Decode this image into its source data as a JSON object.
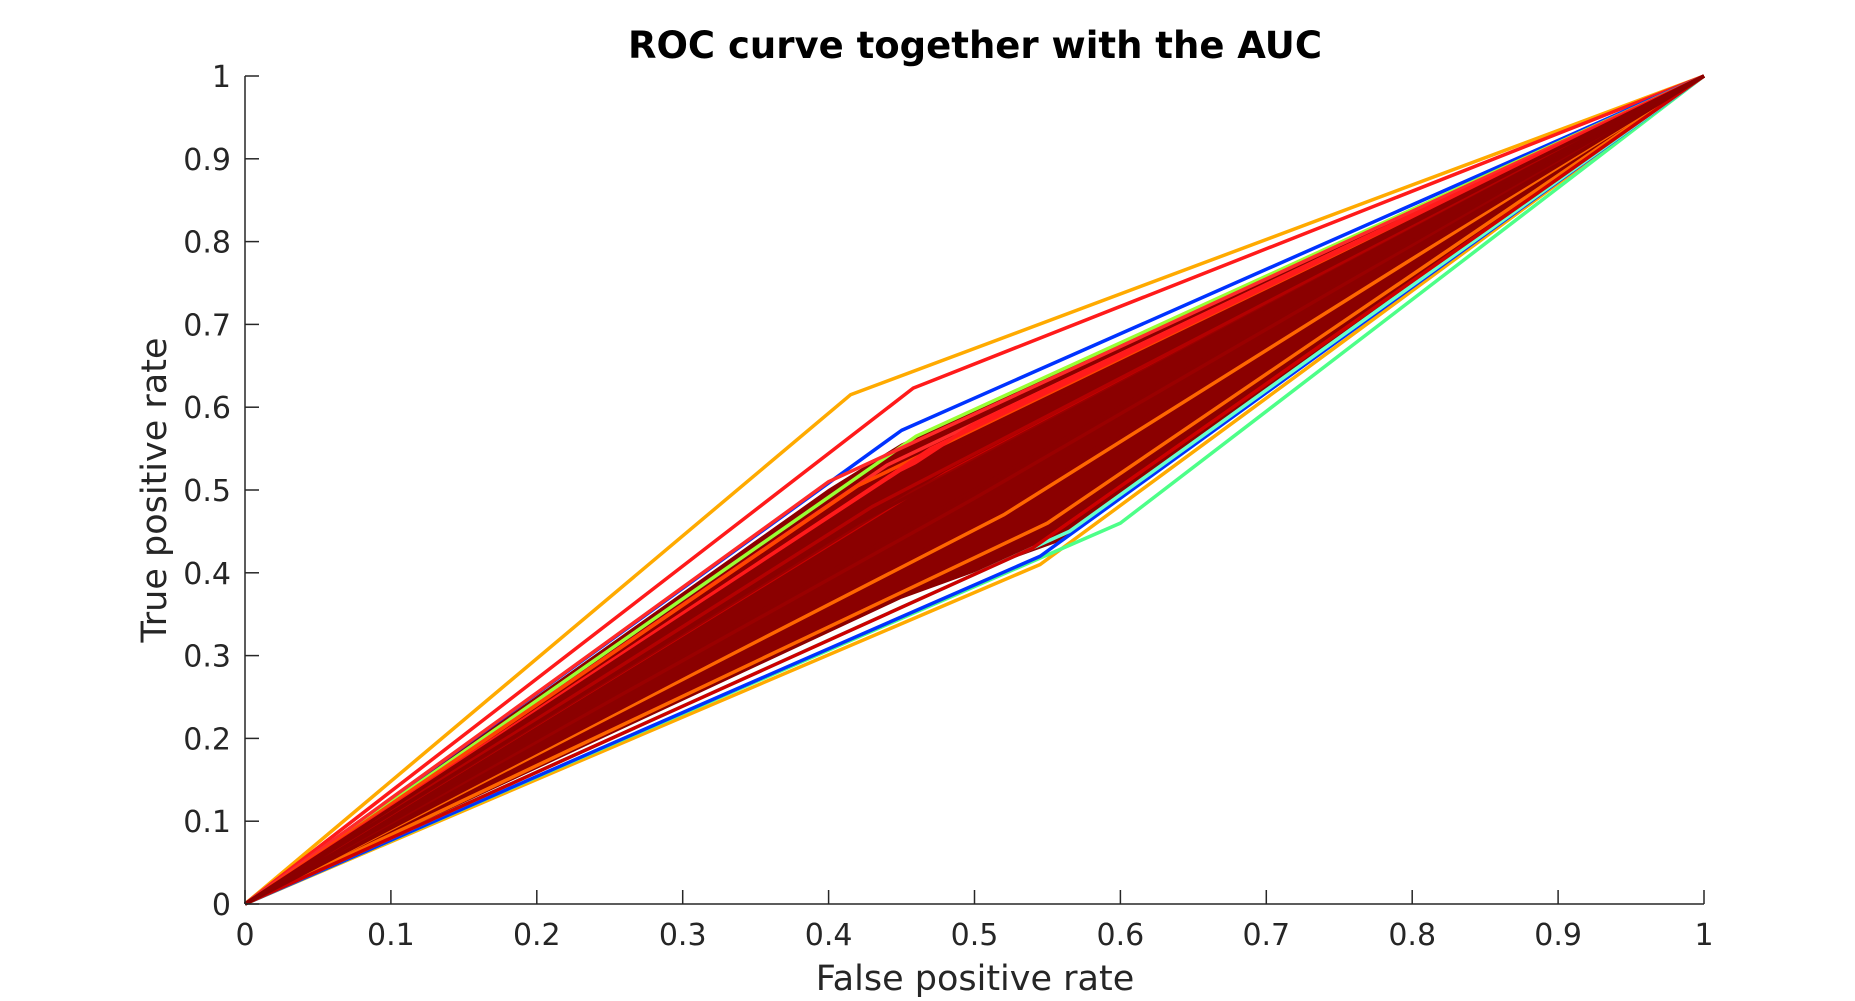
{
  "chart_data": {
    "type": "line",
    "title": "ROC curve together with the AUC",
    "xlabel": "False positive rate",
    "ylabel": "True positive rate",
    "xlim": [
      0,
      1
    ],
    "ylim": [
      0,
      1
    ],
    "grid": false,
    "legend": "none",
    "x_ticks": [
      "0",
      "0.1",
      "0.2",
      "0.3",
      "0.4",
      "0.5",
      "0.6",
      "0.7",
      "0.8",
      "0.9",
      "1"
    ],
    "y_ticks": [
      "0",
      "0.1",
      "0.2",
      "0.3",
      "0.4",
      "0.5",
      "0.6",
      "0.7",
      "0.8",
      "0.9",
      "1"
    ],
    "colors": {
      "dominant": "#8B0000",
      "accents": [
        "#FFAA00",
        "#FF1A1A",
        "#0033FF",
        "#99FF33",
        "#4DFF88",
        "#FF6600",
        "#CC0000"
      ]
    },
    "series": [
      {
        "color": "#FFAA00",
        "x": [
          0,
          0.415,
          1
        ],
        "y": [
          0,
          0.615,
          1
        ]
      },
      {
        "color": "#FF1A1A",
        "x": [
          0,
          0.458,
          1
        ],
        "y": [
          0,
          0.623,
          1
        ]
      },
      {
        "color": "#0033FF",
        "x": [
          0,
          0.45,
          1
        ],
        "y": [
          0,
          0.572,
          1
        ]
      },
      {
        "color": "#99FF33",
        "x": [
          0,
          0.46,
          1
        ],
        "y": [
          0,
          0.565,
          1
        ]
      },
      {
        "color": "#FFAA00",
        "x": [
          0,
          0.545,
          1
        ],
        "y": [
          0,
          0.41,
          1
        ]
      },
      {
        "color": "#4DFF88",
        "x": [
          0,
          0.6,
          1
        ],
        "y": [
          0,
          0.46,
          1
        ]
      },
      {
        "color": "#0033FF",
        "x": [
          0,
          0.545,
          1
        ],
        "y": [
          0,
          0.42,
          1
        ]
      },
      {
        "color": "#66FFCC",
        "x": [
          0,
          0.565,
          1
        ],
        "y": [
          0,
          0.45,
          1
        ]
      },
      {
        "color": "#FF6600",
        "x": [
          0,
          0.55,
          1
        ],
        "y": [
          0,
          0.46,
          1
        ]
      },
      {
        "color": "#FF2A2A",
        "x": [
          0,
          0.4,
          1
        ],
        "y": [
          0,
          0.51,
          1
        ]
      },
      {
        "color": "#FF2A2A",
        "x": [
          0,
          0.44,
          1
        ],
        "y": [
          0,
          0.53,
          1
        ]
      },
      {
        "color": "#FF4400",
        "x": [
          0,
          0.42,
          1
        ],
        "y": [
          0,
          0.505,
          1
        ]
      },
      {
        "color": "#FF1A1A",
        "x": [
          0,
          0.47,
          1
        ],
        "y": [
          0,
          0.55,
          1
        ]
      },
      {
        "color": "#FF1A1A",
        "x": [
          0,
          0.5,
          1
        ],
        "y": [
          0,
          0.58,
          1
        ]
      },
      {
        "color": "#FF6600",
        "x": [
          0,
          0.52,
          1
        ],
        "y": [
          0,
          0.47,
          1
        ]
      },
      {
        "color": "#CC0000",
        "x": [
          0,
          0.54,
          1
        ],
        "y": [
          0,
          0.43,
          1
        ]
      },
      {
        "color": "#CC0000",
        "x": [
          0,
          0.48,
          1
        ],
        "y": [
          0,
          0.52,
          1
        ]
      },
      {
        "color": "#B30000",
        "x": [
          0,
          0.43,
          1
        ],
        "y": [
          0,
          0.48,
          1
        ]
      },
      {
        "color": "#990000",
        "x": [
          0,
          0.46,
          1
        ],
        "y": [
          0,
          0.5,
          1
        ]
      },
      {
        "color": "#990000",
        "x": [
          0,
          0.5,
          1
        ],
        "y": [
          0,
          0.49,
          1
        ]
      },
      {
        "color": "#8B0000",
        "x": [
          0,
          0.45,
          1
        ],
        "y": [
          0,
          0.52,
          1
        ]
      },
      {
        "color": "#8B0000",
        "x": [
          0,
          0.52,
          1
        ],
        "y": [
          0,
          0.52,
          1
        ]
      },
      {
        "color": "#8B0000",
        "x": [
          0,
          0.49,
          1
        ],
        "y": [
          0,
          0.45,
          1
        ]
      },
      {
        "color": "#8B0000",
        "x": [
          0,
          0.55,
          1
        ],
        "y": [
          0,
          0.55,
          1
        ]
      },
      {
        "color": "#8B0000",
        "x": [
          0,
          0.42,
          1
        ],
        "y": [
          0,
          0.46,
          1
        ]
      }
    ]
  }
}
